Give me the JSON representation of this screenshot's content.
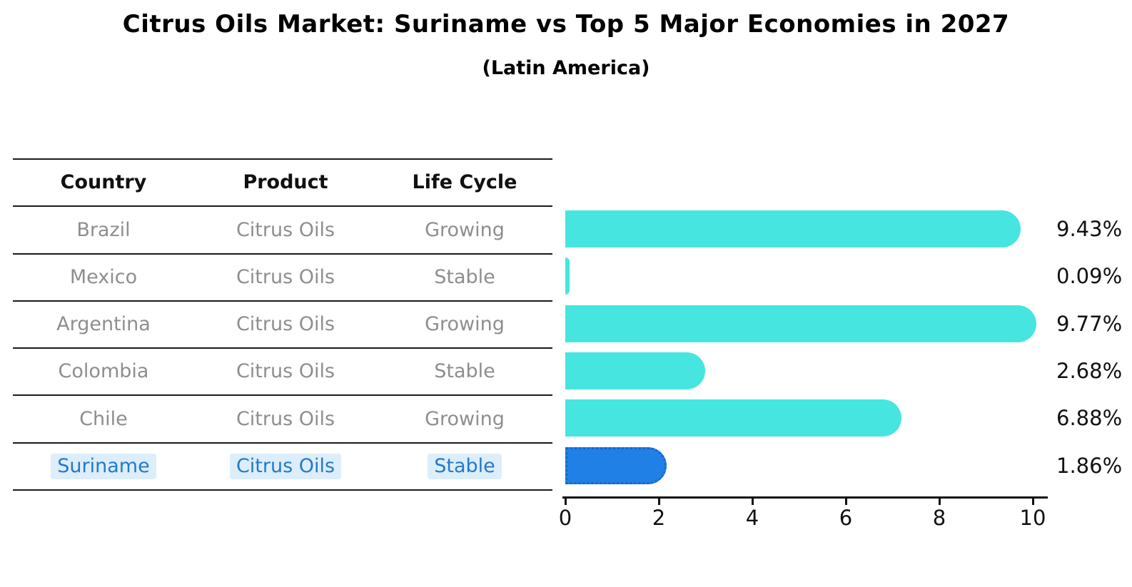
{
  "header": {
    "title": "Citrus Oils Market: Suriname vs Top 5 Major Economies in 2027",
    "subtitle": "(Latin America)"
  },
  "table": {
    "columns": [
      "Country",
      "Product",
      "Life Cycle"
    ],
    "rows": [
      {
        "country": "Brazil",
        "product": "Citrus Oils",
        "life_cycle": "Growing",
        "highlight": false
      },
      {
        "country": "Mexico",
        "product": "Citrus Oils",
        "life_cycle": "Stable",
        "highlight": false
      },
      {
        "country": "Argentina",
        "product": "Citrus Oils",
        "life_cycle": "Growing",
        "highlight": false
      },
      {
        "country": "Colombia",
        "product": "Citrus Oils",
        "life_cycle": "Stable",
        "highlight": false
      },
      {
        "country": "Chile",
        "product": "Citrus Oils",
        "life_cycle": "Growing",
        "highlight": false
      },
      {
        "country": "Suriname",
        "product": "Citrus Oils",
        "life_cycle": "Stable",
        "highlight": true
      }
    ]
  },
  "chart_data": {
    "type": "bar",
    "orientation": "horizontal",
    "title": "Citrus Oils Market: Suriname vs Top 5 Major Economies in 2027",
    "subtitle": "(Latin America)",
    "categories": [
      "Brazil",
      "Mexico",
      "Argentina",
      "Colombia",
      "Chile",
      "Suriname"
    ],
    "values": [
      9.43,
      0.09,
      9.77,
      2.68,
      6.88,
      1.86
    ],
    "value_labels": [
      "9.43%",
      "0.09%",
      "9.77%",
      "2.68%",
      "6.88%",
      "1.86%"
    ],
    "highlight_category": "Suriname",
    "highlight_index": 5,
    "xlim": [
      0,
      10.3
    ],
    "x_ticks": [
      0,
      2,
      4,
      6,
      8,
      10
    ],
    "x_tick_labels": [
      "0",
      "2",
      "4",
      "6",
      "8",
      "10"
    ],
    "grid": false,
    "legend": false,
    "bar_color": "#46E5DF",
    "highlight_bar_color": "#2080E6",
    "highlight_border_color": "#1766C8"
  },
  "colors": {
    "title_text": "#000000",
    "table_line": "#1a1a1a",
    "header_text": "#111111",
    "row_text": "#8e8e8e",
    "highlight_text": "#2479C9",
    "highlight_text_bg": "#DCEEFB",
    "axis": "#111111",
    "value_text": "#111111"
  }
}
